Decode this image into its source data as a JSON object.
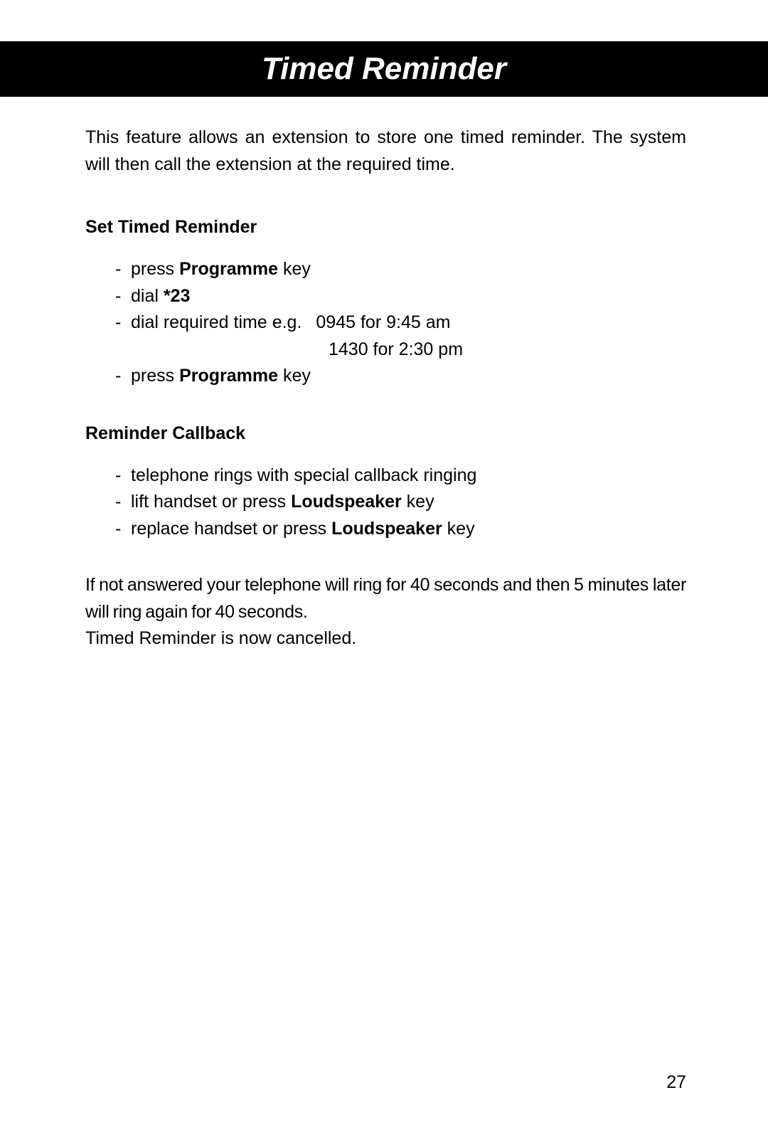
{
  "title": "Timed Reminder",
  "intro": "This feature allows an extension to store one timed reminder. The system will then call the extension at the required time.",
  "section1": {
    "heading": "Set Timed Reminder",
    "items": {
      "i1_pre": "press ",
      "i1_bold": "Programme",
      "i1_post": " key",
      "i2_pre": "dial ",
      "i2_bold": "*23",
      "i3": "dial required time e.g.",
      "i3_ex1": "0945 for 9:45 am",
      "i3_ex2": "1430 for 2:30 pm",
      "i4_pre": "press ",
      "i4_bold": "Programme",
      "i4_post": " key"
    }
  },
  "section2": {
    "heading": "Reminder Callback",
    "items": {
      "i1": "telephone rings with special callback ringing",
      "i2_pre": "lift handset or press ",
      "i2_bold": "Loudspeaker",
      "i2_post": " key",
      "i3_pre": "replace handset or press ",
      "i3_bold": "Loudspeaker",
      "i3_post": " key"
    }
  },
  "footer": {
    "line1": "If not answered your telephone will ring for 40 seconds and then 5 minutes later will ring again for 40 seconds.",
    "line2": "Timed Reminder is now cancelled."
  },
  "pageNumber": "27",
  "colors": {
    "titleBg": "#000000",
    "titleText": "#ffffff",
    "bodyText": "#000000",
    "pageBg": "#ffffff"
  },
  "typography": {
    "titleFontSize": 44,
    "bodyFontSize": 25
  }
}
